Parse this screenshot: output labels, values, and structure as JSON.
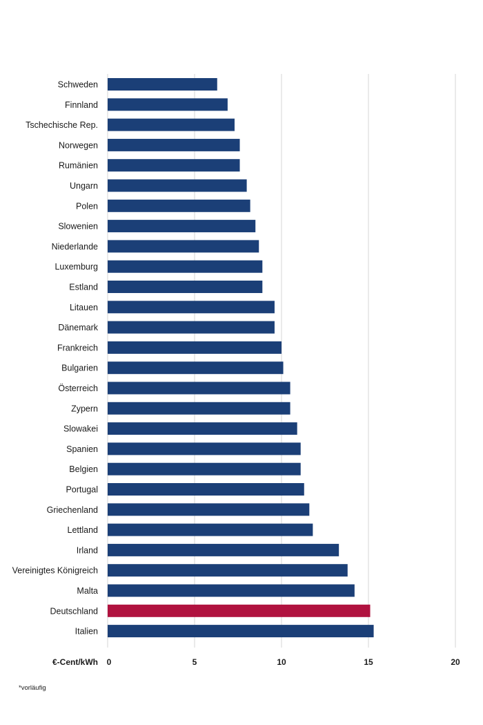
{
  "chart_data": {
    "type": "bar",
    "orientation": "horizontal",
    "categories": [
      "Schweden",
      "Finnland",
      "Tschechische Rep.",
      "Norwegen",
      "Rumänien",
      "Ungarn",
      "Polen",
      "Slowenien",
      "Niederlande",
      "Luxemburg",
      "Estland",
      "Litauen",
      "Dänemark",
      "Frankreich",
      "Bulgarien",
      "Österreich",
      "Zypern",
      "Slowakei",
      "Spanien",
      "Belgien",
      "Portugal",
      "Griechenland",
      "Lettland",
      "Irland",
      "Vereinigtes Königreich",
      "Malta",
      "Deutschland",
      "Italien"
    ],
    "values": [
      6.3,
      6.9,
      7.3,
      7.6,
      7.6,
      8.0,
      8.2,
      8.5,
      8.7,
      8.9,
      8.9,
      9.6,
      9.6,
      10.0,
      10.1,
      10.5,
      10.5,
      10.9,
      11.1,
      11.1,
      11.3,
      11.6,
      11.8,
      13.3,
      13.8,
      14.2,
      15.1,
      15.3
    ],
    "highlight": "Deutschland",
    "colors": {
      "bar": "#1b3f77",
      "highlight": "#b0123f",
      "grid": "#d4d4d4"
    },
    "xlim": [
      0,
      20
    ],
    "xticks": [
      0,
      5,
      10,
      15,
      20
    ],
    "xticklabels": [
      "0",
      "5",
      "10",
      "15",
      "20"
    ],
    "unit_label": "€-Cent/kWh",
    "grid": true,
    "footnote": "*vorläufig"
  }
}
